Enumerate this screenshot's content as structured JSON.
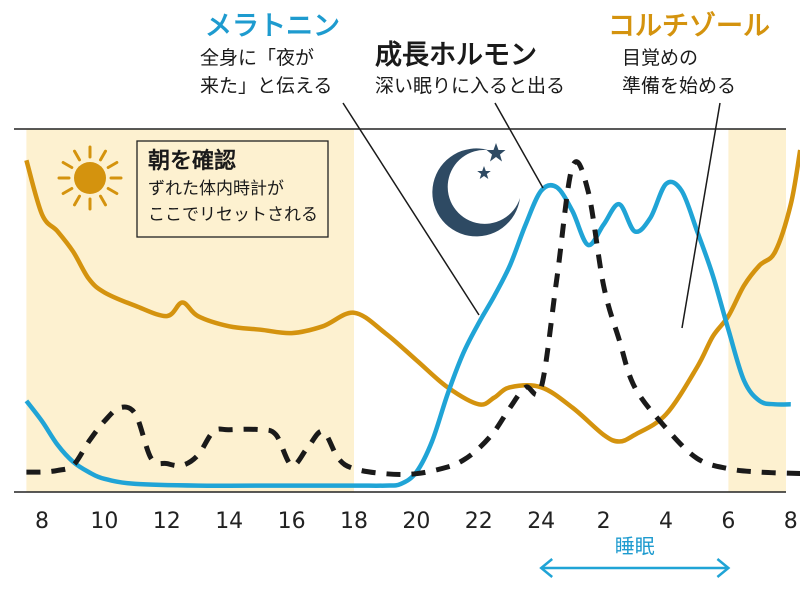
{
  "colors": {
    "melatonin": "#20a4d6",
    "cortisol": "#d4930e",
    "growth_hormone": "#1a1a1a",
    "daylight_band": "#fdf1d0",
    "moon": "#2e4a63",
    "sun": "#d4930e"
  },
  "icons": {
    "day": "sun-icon",
    "night": "moon-with-stars-icon"
  },
  "annotations": {
    "melatonin": {
      "title": "メラトニン",
      "line1": "全身に「夜が",
      "line2": "来た」と伝える"
    },
    "growth_hormone": {
      "title": "成長ホルモン",
      "line1": "深い眠りに入ると出る"
    },
    "cortisol": {
      "title": "コルチゾール",
      "line1": "目覚めの",
      "line2": "準備を始める"
    },
    "morning_box": {
      "title": "朝を確認",
      "line1": "ずれた体内時計が",
      "line2": "ここでリセットされる"
    },
    "sleep_label": "睡眠"
  },
  "chart_data": {
    "type": "line",
    "x_unit": "hours from 8:00 (0 = 8:00, 24 = next 8:00)",
    "tick_labels": [
      "8",
      "10",
      "12",
      "14",
      "16",
      "18",
      "20",
      "22",
      "24",
      "2",
      "4",
      "6",
      "8"
    ],
    "tick_positions": [
      0,
      2,
      4,
      6,
      8,
      10,
      12,
      14,
      16,
      18,
      20,
      22,
      24
    ],
    "xlim": [
      -0.5,
      24.5
    ],
    "ylim": [
      0,
      100
    ],
    "daylight_ranges": [
      [
        -0.5,
        10
      ],
      [
        22,
        24.5
      ]
    ],
    "sleep_range": [
      16,
      22
    ],
    "series": [
      {
        "name": "メラトニン",
        "key": "melatonin",
        "points": [
          [
            -0.5,
            26
          ],
          [
            0,
            20
          ],
          [
            0.5,
            13
          ],
          [
            1,
            8
          ],
          [
            1.5,
            5
          ],
          [
            2,
            3
          ],
          [
            3,
            1.5
          ],
          [
            5,
            1
          ],
          [
            8,
            1
          ],
          [
            10,
            1
          ],
          [
            11,
            1
          ],
          [
            11.5,
            1.5
          ],
          [
            12,
            5
          ],
          [
            12.5,
            14
          ],
          [
            13,
            28
          ],
          [
            13.5,
            40
          ],
          [
            14,
            49
          ],
          [
            14.5,
            57
          ],
          [
            15,
            66
          ],
          [
            15.5,
            78
          ],
          [
            16,
            88
          ],
          [
            16.5,
            89
          ],
          [
            17,
            82
          ],
          [
            17.5,
            72
          ],
          [
            18,
            78
          ],
          [
            18.5,
            84
          ],
          [
            19,
            76
          ],
          [
            19.5,
            80
          ],
          [
            20,
            90
          ],
          [
            20.5,
            88
          ],
          [
            21,
            76
          ],
          [
            21.5,
            63
          ],
          [
            22,
            47
          ],
          [
            22.5,
            32
          ],
          [
            23,
            26
          ],
          [
            23.5,
            25
          ],
          [
            24,
            25
          ]
        ]
      },
      {
        "name": "成長ホルモン",
        "key": "growth_hormone",
        "points": [
          [
            -0.5,
            5
          ],
          [
            0,
            5
          ],
          [
            0.5,
            5.5
          ],
          [
            1,
            7
          ],
          [
            1.5,
            14
          ],
          [
            2,
            20
          ],
          [
            2.5,
            24
          ],
          [
            3,
            22
          ],
          [
            3.5,
            9
          ],
          [
            4,
            7.5
          ],
          [
            4.5,
            7
          ],
          [
            5,
            10
          ],
          [
            5.5,
            17
          ],
          [
            6,
            17.5
          ],
          [
            7,
            17.5
          ],
          [
            7.5,
            16
          ],
          [
            8,
            7
          ],
          [
            8.5,
            12
          ],
          [
            9,
            17
          ],
          [
            9.5,
            9
          ],
          [
            10,
            6
          ],
          [
            11,
            4.5
          ],
          [
            12,
            4.5
          ],
          [
            13,
            6.5
          ],
          [
            13.5,
            8.5
          ],
          [
            14,
            12
          ],
          [
            14.5,
            17
          ],
          [
            15,
            24
          ],
          [
            15.5,
            30
          ],
          [
            16,
            30
          ],
          [
            16.5,
            62
          ],
          [
            17,
            95
          ],
          [
            17.5,
            88
          ],
          [
            18,
            60
          ],
          [
            18.5,
            44
          ],
          [
            19,
            30
          ],
          [
            20,
            18
          ],
          [
            21,
            9
          ],
          [
            22,
            6
          ],
          [
            23,
            5
          ],
          [
            24.5,
            4.5
          ]
        ]
      },
      {
        "name": "コルチゾール",
        "key": "cortisol",
        "points": [
          [
            -0.5,
            97
          ],
          [
            0,
            81
          ],
          [
            0.5,
            76
          ],
          [
            1,
            70
          ],
          [
            1.5,
            62
          ],
          [
            2,
            58
          ],
          [
            3,
            54
          ],
          [
            4,
            51
          ],
          [
            4.5,
            55
          ],
          [
            5,
            51
          ],
          [
            6,
            48
          ],
          [
            7,
            47
          ],
          [
            8,
            46
          ],
          [
            9,
            48
          ],
          [
            10,
            52
          ],
          [
            11,
            46
          ],
          [
            12,
            38
          ],
          [
            13,
            30
          ],
          [
            14,
            25
          ],
          [
            14.5,
            27
          ],
          [
            15,
            30
          ],
          [
            16,
            30
          ],
          [
            17,
            24
          ],
          [
            18,
            16
          ],
          [
            18.5,
            14
          ],
          [
            19,
            16
          ],
          [
            20,
            22
          ],
          [
            21,
            36
          ],
          [
            21.5,
            45
          ],
          [
            22,
            51
          ],
          [
            22.5,
            60
          ],
          [
            23,
            66
          ],
          [
            23.5,
            70
          ],
          [
            24,
            84
          ],
          [
            24.3,
            100
          ]
        ]
      }
    ]
  }
}
